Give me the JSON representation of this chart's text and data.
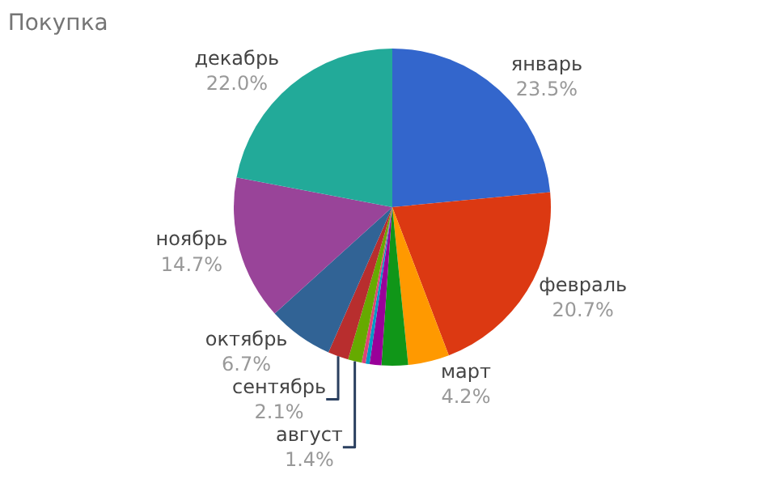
{
  "chart_data": {
    "type": "pie",
    "title": "Покупка",
    "categories": [
      "январь",
      "февраль",
      "март",
      null,
      null,
      null,
      null,
      "август",
      "сентябрь",
      "октябрь",
      "ноябрь",
      "декабрь"
    ],
    "values": [
      23.5,
      20.7,
      4.2,
      2.7,
      1.2,
      0.4,
      0.4,
      1.4,
      2.1,
      6.7,
      14.7,
      22.0
    ],
    "value_labels": [
      "23.5%",
      "20.7%",
      "4.2%",
      null,
      null,
      null,
      null,
      "1.4%",
      "2.1%",
      "6.7%",
      "14.7%",
      "22.0%"
    ],
    "colors": [
      "#3366cc",
      "#dc3912",
      "#ff9900",
      "#109618",
      "#990099",
      "#0099c6",
      "#dd4477",
      "#66aa00",
      "#b82e2e",
      "#316395",
      "#994499",
      "#22aa99"
    ],
    "legend": false
  }
}
